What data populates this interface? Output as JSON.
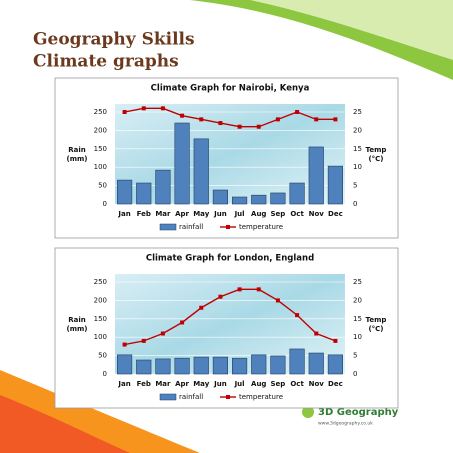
{
  "header": {
    "title": "Geography Skills",
    "subtitle": "Climate graphs"
  },
  "logo": {
    "name": "3D Geography",
    "url": "www.3dgeography.co.uk"
  },
  "chart_data": [
    {
      "type": "combo",
      "title": "Climate Graph for Nairobi, Kenya",
      "categories": [
        "Jan",
        "Feb",
        "Mar",
        "Apr",
        "May",
        "Jun",
        "Jul",
        "Aug",
        "Sep",
        "Oct",
        "Nov",
        "Dec"
      ],
      "y_label": [
        "Rain",
        "(mm)"
      ],
      "y2_label": [
        "Temp",
        "(°C)"
      ],
      "ylim": [
        0,
        250
      ],
      "yticks": [
        0,
        50,
        100,
        150,
        200,
        250
      ],
      "y2lim": [
        0,
        25
      ],
      "y2ticks": [
        0,
        5,
        10,
        15,
        20,
        25
      ],
      "grid": true,
      "series": [
        {
          "name": "rainfall",
          "color": "#4f81bd",
          "kind": "bar",
          "values": [
            65,
            57,
            92,
            220,
            177,
            38,
            19,
            24,
            30,
            57,
            155,
            103
          ]
        },
        {
          "name": "temperature",
          "color": "#c00000",
          "kind": "line",
          "axis": "y2",
          "values": [
            25,
            26,
            26,
            24,
            23,
            22,
            21,
            21,
            23,
            25,
            23,
            23
          ]
        }
      ]
    },
    {
      "type": "combo",
      "title": "Climate Graph for London, England",
      "categories": [
        "Jan",
        "Feb",
        "Mar",
        "Apr",
        "May",
        "Jun",
        "Jul",
        "Aug",
        "Sep",
        "Oct",
        "Nov",
        "Dec"
      ],
      "y_label": [
        "Rain",
        "(mm)"
      ],
      "y2_label": [
        "Temp",
        "(°C)"
      ],
      "ylim": [
        0,
        250
      ],
      "yticks": [
        0,
        50,
        100,
        150,
        200,
        250
      ],
      "y2lim": [
        0,
        25
      ],
      "y2ticks": [
        0,
        5,
        10,
        15,
        20,
        25
      ],
      "grid": true,
      "series": [
        {
          "name": "rainfall",
          "color": "#4f81bd",
          "kind": "bar",
          "values": [
            52,
            38,
            41,
            43,
            46,
            46,
            43,
            52,
            49,
            68,
            57,
            52
          ]
        },
        {
          "name": "temperature",
          "color": "#c00000",
          "kind": "line",
          "axis": "y2",
          "values": [
            8,
            9,
            11,
            14,
            18,
            21,
            23,
            23,
            20,
            16,
            11,
            9
          ]
        }
      ]
    }
  ]
}
